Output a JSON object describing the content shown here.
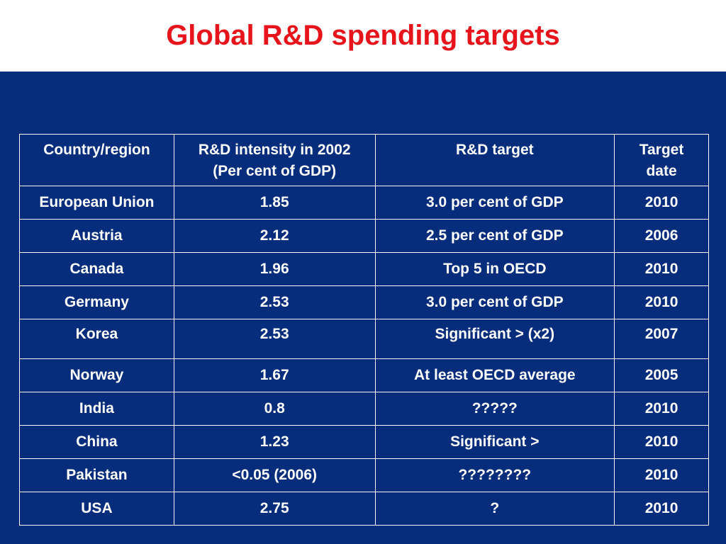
{
  "slide": {
    "title": "Global R&D spending targets"
  },
  "table": {
    "headers": {
      "country": "Country/region",
      "intensity_line1": "R&D intensity in 2002",
      "intensity_line2": "(Per cent of GDP)",
      "target": "R&D target",
      "date_line1": "Target",
      "date_line2": "date"
    },
    "rows": [
      {
        "country": "European Union",
        "intensity": "1.85",
        "target": "3.0 per cent of GDP",
        "date": "2010"
      },
      {
        "country": "Austria",
        "intensity": "2.12",
        "target": "2.5 per cent of GDP",
        "date": "2006"
      },
      {
        "country": "Canada",
        "intensity": "1.96",
        "target": "Top 5 in OECD",
        "date": "2010"
      },
      {
        "country": "Germany",
        "intensity": "2.53",
        "target": "3.0 per cent of GDP",
        "date": "2010"
      },
      {
        "country": "Korea",
        "intensity": "2.53",
        "target": "Significant > (x2)",
        "date": "2007"
      },
      {
        "country": "Norway",
        "intensity": "1.67",
        "target": "At least OECD average",
        "date": "2005"
      },
      {
        "country": "India",
        "intensity": "0.8",
        "target": "?????",
        "date": "2010"
      },
      {
        "country": "China",
        "intensity": "1.23",
        "target": "Significant >",
        "date": "2010"
      },
      {
        "country": "Pakistan",
        "intensity": "<0.05 (2006)",
        "target": "????????",
        "date": "2010"
      },
      {
        "country": "USA",
        "intensity": "2.75",
        "target": "?",
        "date": "2010"
      }
    ]
  },
  "colors": {
    "title": "#e8141c",
    "background": "#062c7c",
    "text": "#ffffff"
  }
}
